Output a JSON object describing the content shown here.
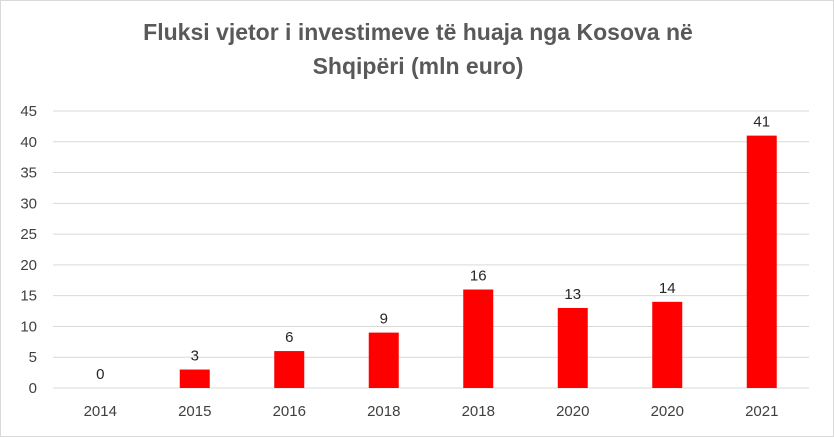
{
  "chart_data": {
    "type": "bar",
    "title_lines": [
      "Fluksi vjetor i investimeve të huaja nga Kosova në",
      "Shqipëri (mln euro)"
    ],
    "categories": [
      "2014",
      "2015",
      "2016",
      "2018",
      "2018",
      "2020",
      "2020",
      "2021"
    ],
    "values": [
      0,
      3,
      6,
      9,
      16,
      13,
      14,
      41
    ],
    "data_labels": [
      "0",
      "3",
      "6",
      "9",
      "16",
      "13",
      "14",
      "41"
    ],
    "y_ticks": [
      "0",
      "5",
      "10",
      "15",
      "20",
      "25",
      "30",
      "35",
      "40",
      "45"
    ],
    "ylim": [
      0,
      45
    ],
    "grid": true,
    "bar_color": "#ff0000",
    "grid_color": "#d9d9d9"
  }
}
